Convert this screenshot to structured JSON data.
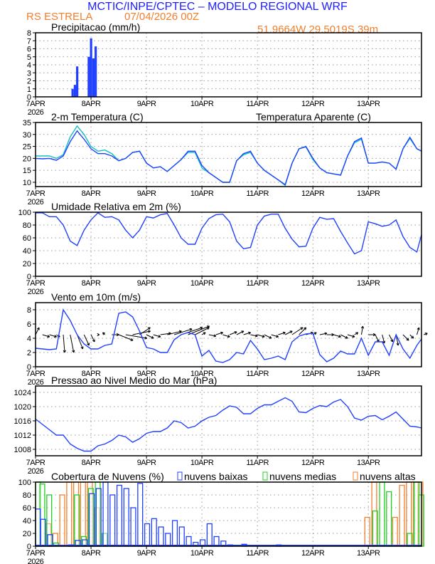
{
  "header": {
    "title": "MCTIC/INPE/CPTEC – MODELO REGIONAL WRF",
    "location": "RS ESTRELA",
    "run": "07/04/2026 00Z",
    "coords": "51.9664W 29.5019S 39m",
    "title_color": "#2020ff",
    "sub_color": "#f08030"
  },
  "x_axis": {
    "labels": [
      "7APR",
      "8APR",
      "9APR",
      "10APR",
      "11APR",
      "12APR",
      "13APR"
    ],
    "year": "2026",
    "hours_range": [
      0,
      167
    ]
  },
  "chart_data": [
    {
      "id": "precip",
      "type": "bar",
      "title": "Precipitacao (mm/h)",
      "ylim": [
        0,
        8
      ],
      "yticks": [
        0,
        1,
        2,
        3,
        4,
        5,
        6,
        7,
        8
      ],
      "grid": true,
      "series": [
        {
          "name": "precip",
          "color": "#2040ff",
          "x": [
            16,
            17,
            18,
            23,
            24,
            25,
            26
          ],
          "values": [
            1.0,
            1.5,
            3.8,
            5.0,
            7.3,
            4.8,
            6.3
          ]
        }
      ]
    },
    {
      "id": "temp",
      "type": "line",
      "title": "2-m Temperatura (C)",
      "legend": "Temperatura Aparente (C)",
      "legend_color": "#10c0c0",
      "ylim": [
        8.2,
        35
      ],
      "yticks": [
        10,
        15,
        20,
        25,
        30,
        35
      ],
      "grid": true,
      "step": 3,
      "series": [
        {
          "name": "Temperatura Aparente (C)",
          "color": "#10c0c0",
          "values": [
            21,
            21,
            21,
            20,
            21.5,
            29,
            33.5,
            30,
            25,
            23,
            23.5,
            22,
            19,
            20,
            22.5,
            23,
            18,
            16,
            16.5,
            14.5,
            17,
            19.5,
            22.5,
            22.5,
            16,
            14,
            12,
            10,
            10,
            19,
            21.5,
            22.5,
            18,
            15,
            13,
            11,
            8.7,
            18,
            24,
            24.8,
            19.5,
            16,
            14,
            13.5,
            13,
            21,
            26.5,
            28,
            18,
            18,
            18.5,
            18,
            15.5,
            24,
            28.3,
            24,
            23
          ]
        },
        {
          "name": "2-m Temperatura (C)",
          "color": "#2040ff",
          "values": [
            20,
            19.8,
            20,
            19.2,
            21,
            27,
            31.5,
            28,
            24,
            22,
            22,
            21,
            19,
            20,
            22.5,
            23,
            18,
            16,
            16.5,
            14.5,
            17,
            19.5,
            23,
            23,
            17,
            14,
            12,
            10,
            10,
            19,
            22,
            23,
            18,
            15,
            13,
            11,
            9,
            18,
            24,
            25,
            20,
            16,
            14,
            13.5,
            13,
            21,
            27,
            28.5,
            18,
            18,
            18.5,
            18,
            15.5,
            24,
            28.8,
            24,
            23
          ]
        }
      ]
    },
    {
      "id": "rh",
      "type": "line",
      "title": "Umidade Relativa em 2m (%)",
      "ylim": [
        0,
        100
      ],
      "yticks": [
        0,
        20,
        40,
        60,
        80,
        100
      ],
      "grid": true,
      "step": 3,
      "series": [
        {
          "name": "UR",
          "color": "#2040ff",
          "values": [
            99,
            99,
            93,
            93,
            80,
            55,
            48,
            72,
            88,
            99,
            92,
            93,
            88,
            72,
            60,
            72,
            93,
            91,
            96,
            98,
            80,
            60,
            50,
            50,
            75,
            90,
            96,
            97,
            85,
            55,
            43,
            45,
            80,
            94,
            97,
            97,
            75,
            58,
            46,
            47,
            75,
            92,
            89,
            90,
            70,
            52,
            35,
            40,
            85,
            82,
            78,
            80,
            88,
            62,
            45,
            38,
            65
          ]
        }
      ]
    },
    {
      "id": "wind",
      "type": "line",
      "title": "Vento em 10m (m/s)",
      "ylim": [
        0,
        9
      ],
      "yticks": [
        0,
        2,
        4,
        6,
        8
      ],
      "grid": true,
      "step": 3,
      "arrow_base": 4.5,
      "series": [
        {
          "name": "speed",
          "color": "#2040ff",
          "values": [
            2.6,
            2.5,
            2.4,
            2.5,
            8.0,
            6.5,
            4.5,
            3.2,
            2.5,
            2.5,
            3.0,
            3.2,
            7.5,
            7.7,
            7.0,
            5.0,
            2.7,
            2.5,
            2.0,
            2.0,
            3.8,
            4.5,
            4.8,
            4.5,
            1.5,
            2.3,
            0.8,
            0.6,
            1.0,
            2.0,
            1.8,
            3.7,
            2.5,
            1.0,
            1.2,
            1.5,
            1.0,
            3.5,
            4.3,
            4.6,
            4.7,
            1.7,
            0.7,
            1.2,
            2.2,
            1.8,
            1.8,
            4.0,
            1.6,
            3.5,
            3.5,
            1.6,
            4.5,
            2.5,
            1.2,
            3.0,
            3.9
          ]
        }
      ],
      "vectors": {
        "u": [
          0.5,
          1,
          1,
          0.5,
          0.2,
          0.5,
          0.8,
          0.7,
          0.5,
          0.2,
          -0.3,
          1,
          2,
          3,
          2.5,
          1.5,
          1,
          1,
          1.5,
          2,
          2.5,
          3,
          3,
          2,
          0.5,
          1,
          1,
          1,
          1,
          1,
          1,
          1,
          1,
          1,
          1,
          1,
          1,
          1.5,
          1,
          1,
          0.5,
          1,
          1,
          1,
          1,
          1,
          0.5,
          0.2,
          1,
          0.5,
          0.3,
          0.5,
          0.3,
          0.8,
          0.5,
          0.3,
          0.5
        ],
        "v": [
          1,
          -0.3,
          -0.3,
          -0.3,
          -2.5,
          -2.5,
          -2,
          -1.5,
          -1,
          0,
          0.3,
          0,
          -0.8,
          -0.5,
          0.5,
          1,
          -0.5,
          -0.3,
          0.2,
          0.5,
          0.8,
          1,
          1.2,
          1,
          0.3,
          -0.2,
          0.3,
          -0.3,
          0.4,
          0.5,
          0.3,
          -0.2,
          -0.3,
          -0.5,
          -0.3,
          0.3,
          0.5,
          1,
          1,
          0.3,
          0.3,
          0.2,
          0,
          -0.3,
          -0.5,
          -0.3,
          0.3,
          1.2,
          0,
          -1,
          -1.2,
          -1,
          -1.5,
          -0.8,
          -0.5,
          1,
          0.2
        ]
      }
    },
    {
      "id": "pres",
      "type": "line",
      "title": "Pressao ao Nivel Medio do Mar (hPa)",
      "ylim": [
        1006.2,
        1025.8
      ],
      "yticks": [
        1008,
        1012,
        1016,
        1020,
        1024
      ],
      "grid": true,
      "step": 3,
      "series": [
        {
          "name": "PNMM",
          "color": "#2040ff",
          "values": [
            1016.5,
            1015,
            1013.5,
            1012,
            1012,
            1009.5,
            1008.3,
            1007.5,
            1007.5,
            1009,
            1009.5,
            1010.5,
            1012,
            1011.5,
            1010,
            1011,
            1012.5,
            1013,
            1013,
            1014,
            1016,
            1015.5,
            1014,
            1014.5,
            1016,
            1017,
            1017.5,
            1019,
            1020.2,
            1019.8,
            1018,
            1018,
            1019.5,
            1020.5,
            1020.5,
            1021.5,
            1022.5,
            1021.5,
            1018.5,
            1018.3,
            1019.5,
            1020.3,
            1020,
            1021.3,
            1022,
            1020,
            1016.8,
            1016.2,
            1017.3,
            1017.5,
            1016.3,
            1017.3,
            1018.5,
            1016.5,
            1014.5,
            1014.3,
            1014
          ]
        }
      ]
    },
    {
      "id": "cloud",
      "type": "bar",
      "title": "Cobertura de Nuvens (%)",
      "ylim": [
        0,
        100
      ],
      "yticks": [
        0,
        20,
        40,
        60,
        80,
        100
      ],
      "grid": true,
      "step": 3,
      "series": [
        {
          "name": "nuvens altas",
          "color": "#f08030",
          "values": [
            0,
            0,
            35,
            20,
            80,
            100,
            100,
            100,
            100,
            60,
            0,
            0,
            0,
            0,
            0,
            0,
            0,
            0,
            0,
            0,
            0,
            0,
            0,
            0,
            0,
            0,
            0,
            0,
            0,
            0,
            0,
            0,
            0,
            0,
            0,
            0,
            0,
            0,
            0,
            0,
            0,
            0,
            0,
            0,
            0,
            0,
            0,
            0,
            45,
            100,
            0,
            0,
            45,
            95,
            100,
            100,
            100
          ]
        },
        {
          "name": "nuvens medias",
          "color": "#20d020",
          "values": [
            100,
            97,
            80,
            5,
            0,
            0,
            80,
            15,
            90,
            100,
            20,
            0,
            0,
            0,
            0,
            0,
            0,
            0,
            0,
            0,
            0,
            0,
            0,
            0,
            0,
            0,
            0,
            0,
            0,
            0,
            0,
            0,
            0,
            0,
            0,
            0,
            0,
            0,
            0,
            0,
            0,
            0,
            0,
            0,
            0,
            0,
            0,
            0,
            0,
            55,
            100,
            85,
            0,
            0,
            20,
            100,
            80
          ]
        },
        {
          "name": "nuvens baixas",
          "color": "#2040ff",
          "values": [
            58,
            42,
            18,
            0,
            0,
            2,
            9,
            10,
            82,
            90,
            100,
            80,
            95,
            90,
            60,
            98,
            35,
            43,
            30,
            20,
            40,
            30,
            15,
            6,
            10,
            35,
            15,
            8,
            2,
            0,
            3,
            0,
            0,
            0,
            0,
            2,
            0,
            0,
            0,
            0,
            0,
            0,
            0,
            0,
            0,
            0,
            0,
            0,
            0,
            0,
            0,
            0,
            0,
            0,
            0,
            0,
            0
          ]
        }
      ]
    }
  ]
}
